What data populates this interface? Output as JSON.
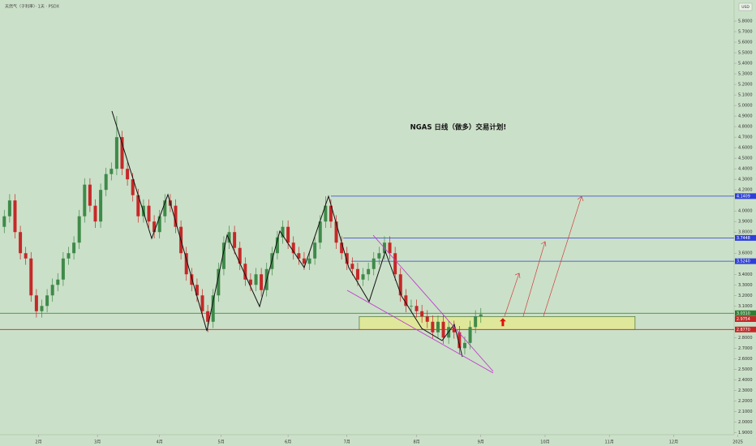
{
  "chart_data": {
    "type": "candlestick",
    "title": "NGAS  日线（做多）交易计划!",
    "symbol_info": "天然气（子利率）· 1天 · PSDX",
    "currency": "USD",
    "up_color": "#3f8a4a",
    "down_color": "#c62828",
    "xlim": [
      -0.8,
      136.3
    ],
    "ylim": [
      1.88,
      6.0
    ],
    "xticks": [
      {
        "value": 6.4,
        "label": "2月"
      },
      {
        "value": 17.4,
        "label": "3月"
      },
      {
        "value": 29,
        "label": "4月"
      },
      {
        "value": 40.5,
        "label": "5月"
      },
      {
        "value": 53,
        "label": "6月"
      },
      {
        "value": 64,
        "label": "7月"
      },
      {
        "value": 77,
        "label": "8月"
      },
      {
        "value": 89,
        "label": "9月"
      },
      {
        "value": 101,
        "label": "10月"
      },
      {
        "value": 113,
        "label": "11月"
      },
      {
        "value": 125,
        "label": "12月"
      },
      {
        "value": 137,
        "label": "2025"
      }
    ],
    "yticks": [
      {
        "value": 5.8,
        "label": "5.8000"
      },
      {
        "value": 5.7,
        "label": "5.7000"
      },
      {
        "value": 5.6,
        "label": "5.6000"
      },
      {
        "value": 5.5,
        "label": "5.5000"
      },
      {
        "value": 5.4,
        "label": "5.4000"
      },
      {
        "value": 5.3,
        "label": "5.3000"
      },
      {
        "value": 5.2,
        "label": "5.2000"
      },
      {
        "value": 5.1,
        "label": "5.1000"
      },
      {
        "value": 5.0,
        "label": "5.0000"
      },
      {
        "value": 4.9,
        "label": "4.9000"
      },
      {
        "value": 4.8,
        "label": "4.8000"
      },
      {
        "value": 4.7,
        "label": "4.7000"
      },
      {
        "value": 4.6,
        "label": "4.6000"
      },
      {
        "value": 4.5,
        "label": "4.5000"
      },
      {
        "value": 4.4,
        "label": "4.4000"
      },
      {
        "value": 4.3,
        "label": "4.3000"
      },
      {
        "value": 4.2,
        "label": "4.2000"
      },
      {
        "value": 4.0,
        "label": "4.0000"
      },
      {
        "value": 3.9,
        "label": "3.9000"
      },
      {
        "value": 3.8,
        "label": "3.8000"
      },
      {
        "value": 3.6,
        "label": "3.6000"
      },
      {
        "value": 3.4,
        "label": "3.4000"
      },
      {
        "value": 3.3,
        "label": "3.3000"
      },
      {
        "value": 3.2,
        "label": "3.2000"
      },
      {
        "value": 3.1,
        "label": "3.1000"
      },
      {
        "value": 2.8,
        "label": "2.8000"
      },
      {
        "value": 2.7,
        "label": "2.7000"
      },
      {
        "value": 2.6,
        "label": "2.6000"
      },
      {
        "value": 2.5,
        "label": "2.5000"
      },
      {
        "value": 2.4,
        "label": "2.4000"
      },
      {
        "value": 2.3,
        "label": "2.3000"
      },
      {
        "value": 2.2,
        "label": "2.2000"
      },
      {
        "value": 2.1,
        "label": "2.1000"
      },
      {
        "value": 2.0,
        "label": "2.0000"
      },
      {
        "value": 1.9,
        "label": "1.9000"
      }
    ],
    "open": [
      3.85,
      3.95,
      4.1,
      3.8,
      3.6,
      3.55,
      3.2,
      3.05,
      3.1,
      3.2,
      3.3,
      3.35,
      3.55,
      3.6,
      3.7,
      3.95,
      4.25,
      4.05,
      3.9,
      4.2,
      4.35,
      4.4,
      4.7,
      4.4,
      4.3,
      4.15,
      3.95,
      4.05,
      3.9,
      3.8,
      3.95,
      4.1,
      4.05,
      3.85,
      3.6,
      3.4,
      3.3,
      3.2,
      3.05,
      2.95,
      3.2,
      3.45,
      3.7,
      3.8,
      3.65,
      3.5,
      3.35,
      3.3,
      3.4,
      3.25,
      3.45,
      3.6,
      3.75,
      3.85,
      3.7,
      3.6,
      3.55,
      3.5,
      3.55,
      3.7,
      3.9,
      4.05,
      3.9,
      3.7,
      3.6,
      3.5,
      3.45,
      3.35,
      3.4,
      3.45,
      3.55,
      3.6,
      3.7,
      3.6,
      3.4,
      3.2,
      3.1,
      3.1,
      3.05,
      3.0,
      2.95,
      2.85,
      2.95,
      2.8,
      2.9,
      2.85,
      2.7,
      2.75,
      2.9,
      3.0
    ],
    "high": [
      4.01,
      4.16,
      4.16,
      3.86,
      3.66,
      3.61,
      3.26,
      3.16,
      3.26,
      3.36,
      3.41,
      3.61,
      3.66,
      3.76,
      4.01,
      4.31,
      4.31,
      4.11,
      4.26,
      4.41,
      4.46,
      4.9,
      4.76,
      4.46,
      4.36,
      4.21,
      4.11,
      4.11,
      3.96,
      4.01,
      4.16,
      4.16,
      4.11,
      3.91,
      3.66,
      3.46,
      3.36,
      3.26,
      3.11,
      3.26,
      3.51,
      3.76,
      3.86,
      3.86,
      3.71,
      3.56,
      3.41,
      3.46,
      3.46,
      3.51,
      3.66,
      3.81,
      3.91,
      3.91,
      3.76,
      3.66,
      3.61,
      3.61,
      3.76,
      3.96,
      4.14,
      4.11,
      3.96,
      3.76,
      3.66,
      3.56,
      3.51,
      3.46,
      3.51,
      3.61,
      3.66,
      3.76,
      3.76,
      3.66,
      3.46,
      3.26,
      3.16,
      3.16,
      3.11,
      3.06,
      3.01,
      3.01,
      3.01,
      2.96,
      2.96,
      2.91,
      2.81,
      2.96,
      3.06,
      3.08
    ],
    "low": [
      3.79,
      3.89,
      3.74,
      3.54,
      3.49,
      3.14,
      2.99,
      2.99,
      3.04,
      3.14,
      3.24,
      3.29,
      3.49,
      3.54,
      3.64,
      3.89,
      3.99,
      3.84,
      3.84,
      4.14,
      4.29,
      4.34,
      4.34,
      4.24,
      4.09,
      3.89,
      3.89,
      3.84,
      3.74,
      3.74,
      3.89,
      3.99,
      3.79,
      3.54,
      3.34,
      3.24,
      3.14,
      2.99,
      2.85,
      2.89,
      3.14,
      3.39,
      3.64,
      3.59,
      3.44,
      3.29,
      3.24,
      3.24,
      3.19,
      3.19,
      3.39,
      3.54,
      3.69,
      3.64,
      3.54,
      3.49,
      3.44,
      3.44,
      3.49,
      3.64,
      3.84,
      3.84,
      3.64,
      3.54,
      3.44,
      3.39,
      3.29,
      3.29,
      3.34,
      3.39,
      3.49,
      3.54,
      3.54,
      3.34,
      3.14,
      3.04,
      3.04,
      2.99,
      2.94,
      2.89,
      2.79,
      2.79,
      2.74,
      2.74,
      2.79,
      2.64,
      2.64,
      2.69,
      2.84,
      2.94
    ],
    "close": [
      3.95,
      4.1,
      3.8,
      3.6,
      3.55,
      3.2,
      3.05,
      3.1,
      3.2,
      3.3,
      3.35,
      3.55,
      3.6,
      3.7,
      3.95,
      4.25,
      4.05,
      3.9,
      4.2,
      4.35,
      4.4,
      4.7,
      4.4,
      4.3,
      4.15,
      3.95,
      4.05,
      3.9,
      3.8,
      3.95,
      4.1,
      4.05,
      3.85,
      3.6,
      3.4,
      3.3,
      3.2,
      3.05,
      2.95,
      3.2,
      3.45,
      3.7,
      3.8,
      3.65,
      3.5,
      3.35,
      3.3,
      3.4,
      3.25,
      3.45,
      3.6,
      3.75,
      3.85,
      3.7,
      3.6,
      3.55,
      3.5,
      3.55,
      3.7,
      3.9,
      4.05,
      3.9,
      3.7,
      3.6,
      3.5,
      3.45,
      3.35,
      3.4,
      3.45,
      3.55,
      3.6,
      3.7,
      3.6,
      3.4,
      3.2,
      3.1,
      3.1,
      3.05,
      3.0,
      2.95,
      2.85,
      2.95,
      2.8,
      2.9,
      2.85,
      2.7,
      2.75,
      2.9,
      3.0,
      3.02
    ],
    "levels": [
      {
        "value": 4.1409,
        "label": "4.1409",
        "color": "#2f3fd8",
        "from": 61
      },
      {
        "value": 3.7448,
        "label": "3.7448",
        "color": "#2f3fd8",
        "from": 63.3
      },
      {
        "value": 3.524,
        "label": "3.5240",
        "color": "#2f3fd8",
        "from": 64.8
      },
      {
        "value": 3.031,
        "label": "3.0310",
        "color": "#2e7d32",
        "from": -0.8
      },
      {
        "value": 2.9754,
        "label": "2.9754",
        "color": "#c62828",
        "from": null
      },
      {
        "value": 2.877,
        "label": "2.8770",
        "color": "#c62828",
        "from": -0.8
      }
    ],
    "zone": {
      "top": 3.0,
      "bottom": 2.877,
      "from": 66.3,
      "to": 117.8
    }
  }
}
